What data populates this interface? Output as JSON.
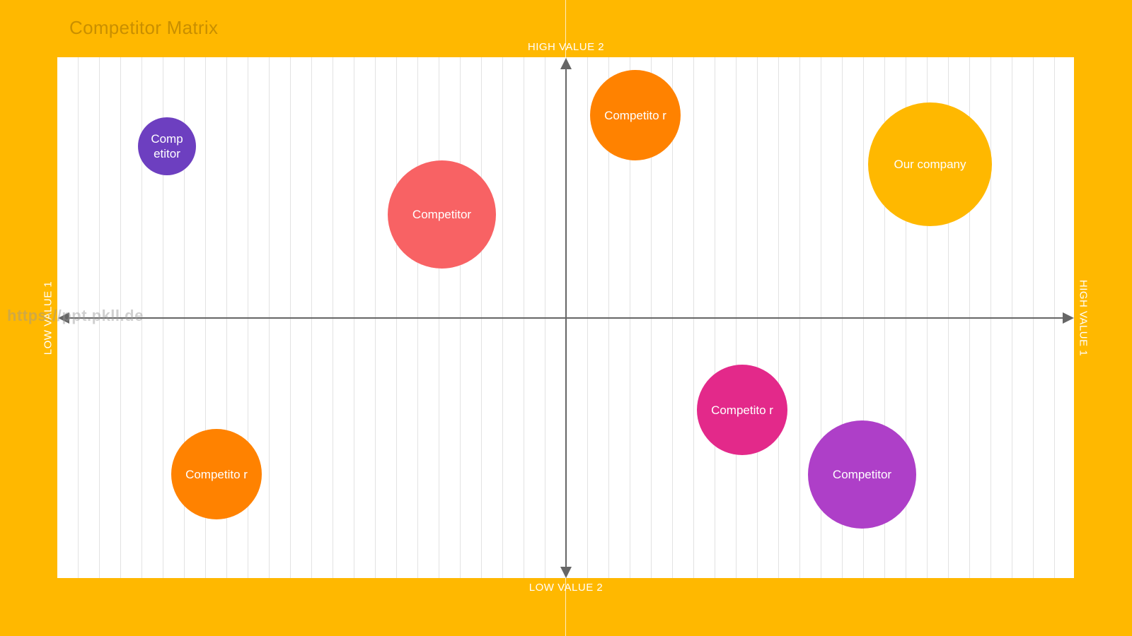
{
  "title": "Competitor Matrix",
  "axes": {
    "high_value_2": "HIGH VALUE 2",
    "low_value_2": "LOW VALUE 2",
    "low_value_1": "LOW VALUE 1",
    "high_value_1": "HIGH VALUE 1"
  },
  "watermark": "https://ppt.pkll.de",
  "colors": {
    "background": "#FFB800",
    "axis": "#666666",
    "grid_line": "#e2e2e2"
  },
  "bubbles": [
    {
      "label": "Comp etitor",
      "color": "#6D3FC0"
    },
    {
      "label": "Competitor",
      "color": "#F86264"
    },
    {
      "label": "Competito r",
      "color": "#FF8200"
    },
    {
      "label": "Our company",
      "color": "#FFB800"
    },
    {
      "label": "Competito r",
      "color": "#E3298A"
    },
    {
      "label": "Competitor",
      "color": "#AE3FC8"
    },
    {
      "label": "Competito r",
      "color": "#FF8200"
    }
  ]
}
